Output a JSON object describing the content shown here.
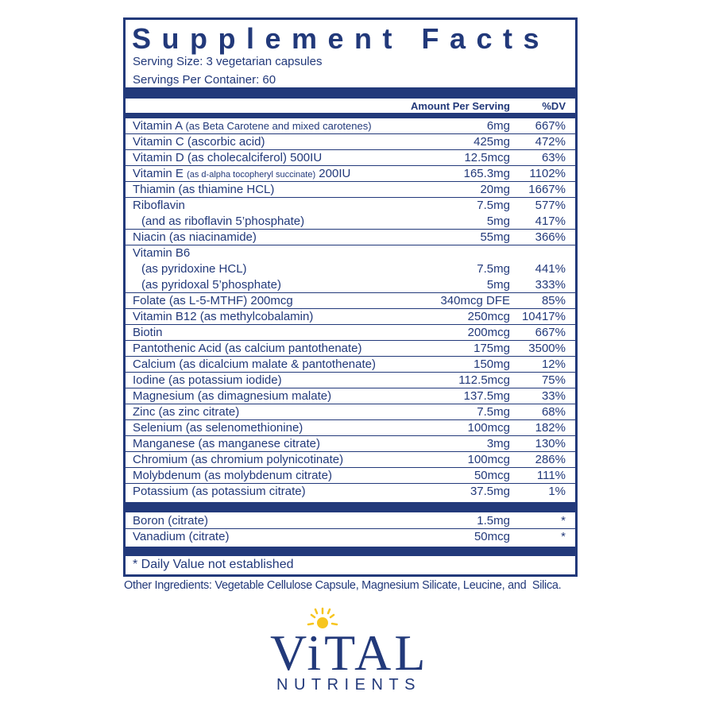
{
  "panel": {
    "title": "Supplement Facts",
    "serving_size": "Serving Size: 3 vegetarian capsules",
    "servings_per_container": "Servings Per Container: 60",
    "header": {
      "amount": "Amount Per Serving",
      "dv": "%DV"
    },
    "rows": [
      {
        "label": "Vitamin A",
        "detail": "(as Beta Carotene and mixed carotenes)",
        "amount": "6mg",
        "dv": "667%"
      },
      {
        "label": "Vitamin C (ascorbic acid)",
        "amount": "425mg",
        "dv": "472%"
      },
      {
        "label": "Vitamin D (as cholecalciferol) 500IU",
        "amount": "12.5mcg",
        "dv": "63%"
      },
      {
        "label": "Vitamin E",
        "detail": "(as d-alpha tocopheryl succinate)",
        "tail": "200IU",
        "amount": "165.3mg",
        "dv": "1102%"
      },
      {
        "label": "Thiamin (as thiamine HCL)",
        "amount": "20mg",
        "dv": "1667%"
      },
      {
        "label": "Riboflavin",
        "amount": "7.5mg",
        "dv": "577%",
        "sub": [
          {
            "label": "(and as riboflavin 5’phosphate)",
            "amount": "5mg",
            "dv": "417%"
          }
        ]
      },
      {
        "label": "Niacin (as niacinamide)",
        "amount": "55mg",
        "dv": "366%"
      },
      {
        "label": "Vitamin B6",
        "sub": [
          {
            "label": "(as pyridoxine HCL)",
            "amount": "7.5mg",
            "dv": "441%"
          },
          {
            "label": "(as pyridoxal 5’phosphate)",
            "amount": "5mg",
            "dv": "333%"
          }
        ]
      },
      {
        "label": "Folate (as L-5-MTHF) 200mcg",
        "amount": "340mcg DFE",
        "dv": "85%"
      },
      {
        "label": "Vitamin B12 (as methylcobalamin)",
        "amount": "250mcg",
        "dv": "10417%"
      },
      {
        "label": "Biotin",
        "amount": "200mcg",
        "dv": "667%"
      },
      {
        "label": "Pantothenic Acid (as calcium pantothenate)",
        "amount": "175mg",
        "dv": "3500%"
      },
      {
        "label": "Calcium (as dicalcium malate & pantothenate)",
        "amount": "150mg",
        "dv": "12%"
      },
      {
        "label": "Iodine (as potassium iodide)",
        "amount": "112.5mcg",
        "dv": "75%"
      },
      {
        "label": "Magnesium (as dimagnesium malate)",
        "amount": "137.5mg",
        "dv": "33%"
      },
      {
        "label": "Zinc (as zinc citrate)",
        "amount": "7.5mg",
        "dv": "68%"
      },
      {
        "label": "Selenium (as selenomethionine)",
        "amount": "100mcg",
        "dv": "182%"
      },
      {
        "label": "Manganese (as manganese citrate)",
        "amount": "3mg",
        "dv": "130%"
      },
      {
        "label": "Chromium (as chromium polynicotinate)",
        "amount": "100mcg",
        "dv": "286%"
      },
      {
        "label": "Molybdenum (as molybdenum citrate)",
        "amount": "50mcg",
        "dv": "111%"
      },
      {
        "label": "Potassium (as potassium citrate)",
        "amount": "37.5mg",
        "dv": "1%"
      }
    ],
    "extra_rows": [
      {
        "label": "Boron (citrate)",
        "amount": "1.5mg",
        "dv": "*"
      },
      {
        "label": "Vanadium (citrate)",
        "amount": "50mcg",
        "dv": "*"
      }
    ],
    "footnote": "* Daily Value not established"
  },
  "other_ingredients": "Other Ingredients: Vegetable Cellulose Capsule, Magnesium Silicate, Leucine, and  Silica.",
  "brand": {
    "name": "ViTAL",
    "tagline": "NUTRIENTS"
  }
}
